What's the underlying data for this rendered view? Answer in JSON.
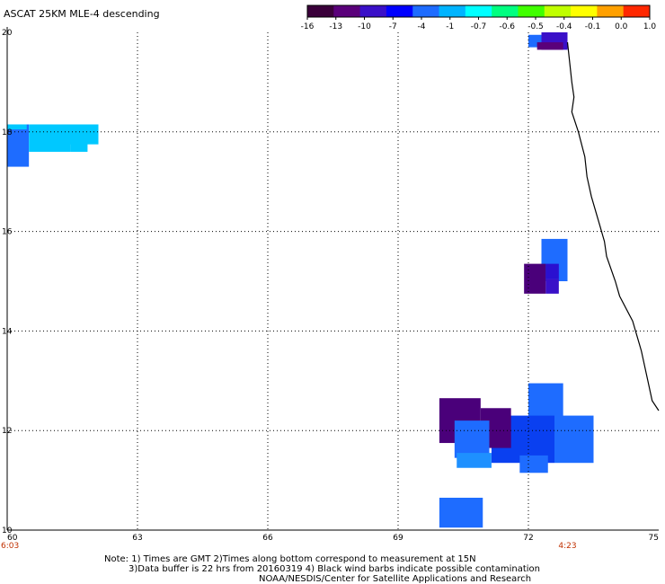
{
  "title": "ASCAT 25KM MLE-4 descending",
  "colorbar": {
    "labels": [
      "-16",
      "-13",
      "-10",
      "-7",
      "-4",
      "-1",
      "-0.7",
      "-0.6",
      "-0.5",
      "-0.4",
      "-0.1",
      "0.0",
      "1.0"
    ],
    "colors": [
      "#3a003a",
      "#5a007a",
      "#3a10c8",
      "#0000ff",
      "#1e6cff",
      "#00b4ff",
      "#00ffff",
      "#00ff80",
      "#40ff00",
      "#c0ff00",
      "#ffff00",
      "#ffa000",
      "#ff2800"
    ]
  },
  "chart_data": {
    "type": "heatmap",
    "xlim": [
      60,
      75
    ],
    "ylim": [
      10,
      20
    ],
    "x_ticks": [
      "60",
      "63",
      "66",
      "69",
      "72",
      "75"
    ],
    "y_ticks": [
      "20",
      "18",
      "16",
      "14",
      "12",
      "10"
    ],
    "grid": true,
    "time_labels": [
      {
        "text": "6:03",
        "lon": 60
      },
      {
        "text": "4:23",
        "lon": 72.9
      }
    ],
    "cells": [
      {
        "lon0": 60.0,
        "lon1": 60.5,
        "lat0": 17.3,
        "lat1": 18.15,
        "color": "#1e6cff"
      },
      {
        "lon0": 60.5,
        "lon1": 61.45,
        "lat0": 17.6,
        "lat1": 18.15,
        "color": "#00c8ff"
      },
      {
        "lon0": 61.45,
        "lon1": 61.85,
        "lat0": 17.6,
        "lat1": 18.05,
        "color": "#00c8ff"
      },
      {
        "lon0": 60.0,
        "lon1": 60.45,
        "lat0": 18.05,
        "lat1": 18.15,
        "color": "#00c8ff"
      },
      {
        "lon0": 60.55,
        "lon1": 61.05,
        "lat0": 18.05,
        "lat1": 18.15,
        "color": "#00c8ff"
      },
      {
        "lon0": 61.25,
        "lon1": 62.1,
        "lat0": 17.75,
        "lat1": 18.15,
        "color": "#00c8ff"
      },
      {
        "lon0": 72.3,
        "lon1": 72.9,
        "lat0": 15.0,
        "lat1": 15.85,
        "color": "#1e6cff"
      },
      {
        "lon0": 71.9,
        "lon1": 72.4,
        "lat0": 14.75,
        "lat1": 15.35,
        "color": "#4a007a"
      },
      {
        "lon0": 72.4,
        "lon1": 72.7,
        "lat0": 15.05,
        "lat1": 15.35,
        "color": "#2a10d0"
      },
      {
        "lon0": 72.4,
        "lon1": 72.7,
        "lat0": 14.75,
        "lat1": 15.05,
        "color": "#3a10c8"
      },
      {
        "lon0": 72.0,
        "lon1": 72.8,
        "lat0": 11.55,
        "lat1": 12.95,
        "color": "#1e6cff"
      },
      {
        "lon0": 72.6,
        "lon1": 73.5,
        "lat0": 11.35,
        "lat1": 12.3,
        "color": "#1e6cff"
      },
      {
        "lon0": 71.15,
        "lon1": 72.6,
        "lat0": 11.35,
        "lat1": 12.3,
        "color": "#0a40f0"
      },
      {
        "lon0": 69.95,
        "lon1": 70.9,
        "lat0": 11.75,
        "lat1": 12.65,
        "color": "#4a007a"
      },
      {
        "lon0": 70.9,
        "lon1": 71.6,
        "lat0": 11.65,
        "lat1": 12.45,
        "color": "#4a007a"
      },
      {
        "lon0": 70.3,
        "lon1": 71.1,
        "lat0": 11.45,
        "lat1": 12.2,
        "color": "#1e6cff"
      },
      {
        "lon0": 70.35,
        "lon1": 71.15,
        "lat0": 11.25,
        "lat1": 11.55,
        "color": "#1e90ff"
      },
      {
        "lon0": 71.8,
        "lon1": 72.45,
        "lat0": 11.15,
        "lat1": 11.5,
        "color": "#1e6cff"
      },
      {
        "lon0": 69.95,
        "lon1": 70.95,
        "lat0": 10.05,
        "lat1": 10.65,
        "color": "#1e6cff"
      },
      {
        "lon0": 72.0,
        "lon1": 72.3,
        "lat0": 19.7,
        "lat1": 19.95,
        "color": "#1e6cff"
      },
      {
        "lon0": 72.3,
        "lon1": 72.9,
        "lat0": 19.65,
        "lat1": 20.0,
        "color": "#3a10c8"
      },
      {
        "lon0": 72.2,
        "lon1": 72.8,
        "lat0": 19.65,
        "lat1": 19.8,
        "color": "#5a007a"
      }
    ],
    "coastline": [
      [
        72.9,
        19.8
      ],
      [
        72.95,
        19.4
      ],
      [
        73.0,
        19.0
      ],
      [
        73.05,
        18.7
      ],
      [
        73.0,
        18.4
      ],
      [
        73.15,
        18.0
      ],
      [
        73.3,
        17.5
      ],
      [
        73.35,
        17.1
      ],
      [
        73.45,
        16.7
      ],
      [
        73.65,
        16.1
      ],
      [
        73.75,
        15.8
      ],
      [
        73.8,
        15.5
      ],
      [
        74.0,
        15.0
      ],
      [
        74.1,
        14.7
      ],
      [
        74.4,
        14.2
      ],
      [
        74.6,
        13.6
      ],
      [
        74.75,
        13.0
      ],
      [
        74.85,
        12.6
      ],
      [
        75.0,
        12.4
      ]
    ]
  },
  "notes": {
    "line1": "Note: 1) Times are GMT 2)Times along bottom correspond to measurement at 15N",
    "line2": "3)Data buffer is 22 hrs from 20160319 4) Black wind barbs indicate possible contamination",
    "line3": "NOAA/NESDIS/Center for Satellite Applications and Research"
  }
}
